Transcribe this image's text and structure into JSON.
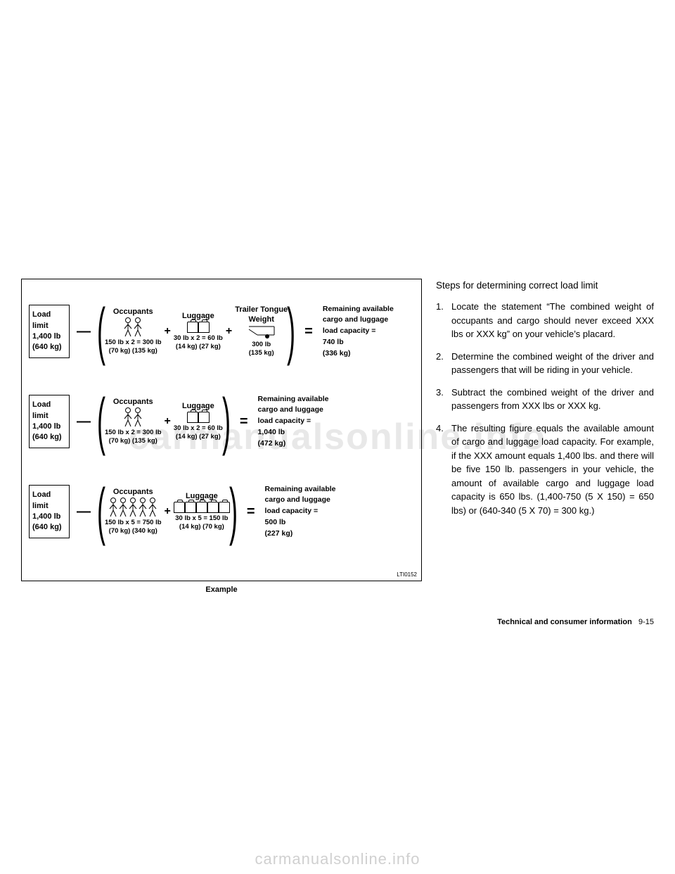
{
  "watermark": "carmanualsonline.info",
  "diagram": {
    "figure_id": "LTI0152",
    "caption": "Example",
    "rows": [
      {
        "load_limit_line1": "Load limit",
        "load_limit_line2": "1,400 lb",
        "load_limit_line3": "(640 kg)",
        "occupants_label": "Occupants",
        "occupants_count": 2,
        "occupants_calc1": "150 lb x 2 = 300 lb",
        "occupants_calc2": "(70 kg)    (135 kg)",
        "luggage_label": "Luggage",
        "luggage_count": 2,
        "luggage_calc1": "30 lb x 2 = 60 lb",
        "luggage_calc2": "(14 kg)    (27 kg)",
        "trailer_label": "Trailer Tongue",
        "trailer_label2": "Weight",
        "trailer_calc1": "300 lb",
        "trailer_calc2": "(135 kg)",
        "result_line1": "Remaining available",
        "result_line2": "cargo and luggage",
        "result_line3": "load capacity =",
        "result_line4": "740 lb",
        "result_line5": "(336 kg)"
      },
      {
        "load_limit_line1": "Load limit",
        "load_limit_line2": "1,400 lb",
        "load_limit_line3": "(640 kg)",
        "occupants_label": "Occupants",
        "occupants_count": 2,
        "occupants_calc1": "150 lb x 2 = 300 lb",
        "occupants_calc2": "(70 kg)    (135 kg)",
        "luggage_label": "Luggage",
        "luggage_count": 2,
        "luggage_calc1": "30 lb x 2 = 60 lb",
        "luggage_calc2": "(14 kg)    (27 kg)",
        "result_line1": "Remaining available",
        "result_line2": "cargo and luggage",
        "result_line3": "load capacity =",
        "result_line4": "1,040 lb",
        "result_line5": "(472 kg)"
      },
      {
        "load_limit_line1": "Load limit",
        "load_limit_line2": "1,400 lb",
        "load_limit_line3": "(640 kg)",
        "occupants_label": "Occupants",
        "occupants_count": 5,
        "occupants_calc1": "150 lb x 5 = 750 lb",
        "occupants_calc2": "(70 kg)    (340 kg)",
        "luggage_label": "Luggage",
        "luggage_count": 5,
        "luggage_calc1": "30 lb x 5 = 150 lb",
        "luggage_calc2": "(14 kg)    (70 kg)",
        "result_line1": "Remaining available",
        "result_line2": "cargo and luggage",
        "result_line3": "load capacity =",
        "result_line4": "500 lb",
        "result_line5": "(227 kg)"
      }
    ]
  },
  "text": {
    "heading": "Steps for determining correct load limit",
    "items": [
      "Locate the statement “The combined weight of occupants and cargo should never exceed XXX lbs or XXX kg” on your vehicle’s placard.",
      "Determine the combined weight of the driver and passengers that will be riding in your vehicle.",
      "Subtract the combined weight of the driver and passengers from XXX lbs or XXX kg.",
      "The resulting figure equals the available amount of cargo and luggage load capacity. For example, if the XXX amount equals 1,400 lbs. and there will be five 150 lb. passengers in your vehicle, the amount of available cargo and luggage load capac­ity is 650 lbs. (1,400-750 (5 X 150) = 650 lbs) or (640-340 (5 X 70) = 300 kg.)"
    ]
  },
  "footer": {
    "label": "Technical and consumer information",
    "page": "9-15"
  }
}
